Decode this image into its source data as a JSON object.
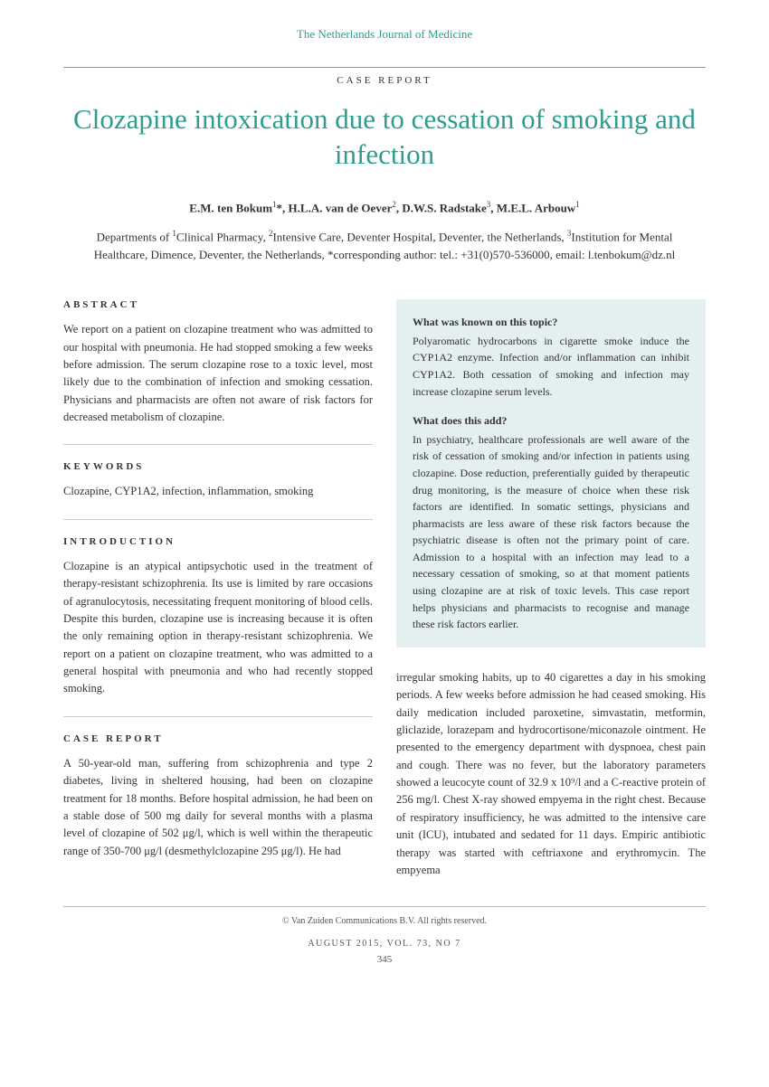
{
  "journal_name": "The Netherlands Journal of Medicine",
  "article_type": "CASE REPORT",
  "title": "Clozapine intoxication due to cessation of smoking and infection",
  "authors_html": "E.M. ten Bokum<sup>1</sup>*, H.L.A. van de Oever<sup>2</sup>, D.W.S. Radstake<sup>3</sup>, M.E.L. Arbouw<sup>1</sup>",
  "affiliations_html": "Departments of <sup>1</sup>Clinical Pharmacy, <sup>2</sup>Intensive Care, Deventer Hospital, Deventer, the Netherlands, <sup>3</sup>Institution for Mental Healthcare, Dimence, Deventer, the Netherlands, *corresponding author: tel.: +31(0)570-536000, email: l.tenbokum@dz.nl",
  "abstract": {
    "heading": "ABSTRACT",
    "text": "We report on a patient on clozapine treatment who was admitted to our hospital with pneumonia. He had stopped smoking a few weeks before admission. The serum clozapine rose to a toxic level, most likely due to the combination of infection and smoking cessation. Physicians and pharmacists are often not aware of risk factors for decreased metabolism of clozapine."
  },
  "keywords": {
    "heading": "KEYWORDS",
    "text": "Clozapine, CYP1A2, infection, inflammation, smoking"
  },
  "introduction": {
    "heading": "INTRODUCTION",
    "text": "Clozapine is an atypical antipsychotic used in the treatment of therapy-resistant schizophrenia. Its use is limited by rare occasions of agranulocytosis, necessitating frequent monitoring of blood cells. Despite this burden, clozapine use is increasing because it is often the only remaining option in therapy-resistant schizophrenia. We report on a patient on clozapine treatment, who was admitted to a general hospital with pneumonia and who had recently stopped smoking."
  },
  "case_report": {
    "heading": "CASE REPORT",
    "text_col1": "A 50-year-old man, suffering from schizophrenia and type 2 diabetes, living in sheltered housing, had been on clozapine treatment for 18 months. Before hospital admission, he had been on a stable dose of 500 mg daily for several months with a plasma level of clozapine of 502 μg/l, which is well within the therapeutic range of 350-700 μg/l (desmethylclozapine 295 μg/l). He had",
    "text_col2": "irregular smoking habits, up to 40 cigarettes a day in his smoking periods. A few weeks before admission he had ceased smoking. His daily medication included paroxetine, simvastatin, metformin, gliclazide, lorazepam and hydrocortisone/miconazole ointment. He presented to the emergency department with dyspnoea, chest pain and cough. There was no fever, but the laboratory parameters showed a leucocyte count of 32.9 x 10⁹/l and a C-reactive protein of 256 mg/l. Chest X-ray showed empyema in the right chest. Because of respiratory insufficiency, he was admitted to the intensive care unit (ICU), intubated and sedated for 11 days. Empiric antibiotic therapy was started with ceftriaxone and erythromycin. The empyema"
  },
  "info_box": {
    "q1_heading": "What was known on this topic?",
    "q1_text": "Polyaromatic hydrocarbons in cigarette smoke induce the CYP1A2 enzyme. Infection and/or inflammation can inhibit CYP1A2. Both cessation of smoking and infection may increase clozapine serum levels.",
    "q2_heading": "What does this add?",
    "q2_text": "In psychiatry, healthcare professionals are well aware of the risk of cessation of smoking and/or infection in patients using clozapine. Dose reduction, preferentially guided by therapeutic drug monitoring, is the measure of choice when these risk factors are identified. In somatic settings, physicians and pharmacists are less aware of these risk factors because the psychiatric disease is often not the primary point of care. Admission to a hospital with an infection may lead to a necessary cessation of smoking, so at that moment patients using clozapine are at risk of toxic levels. This case report helps physicians and pharmacists to recognise and manage these risk factors earlier."
  },
  "footer": {
    "copyright": "© Van Zuiden Communications B.V. All rights reserved.",
    "issue": "AUGUST 2015, VOL. 73, NO 7",
    "page": "345"
  },
  "colors": {
    "teal": "#2e9c8e",
    "box_bg": "#e4eff0",
    "text": "#333333",
    "rule": "#999999"
  }
}
